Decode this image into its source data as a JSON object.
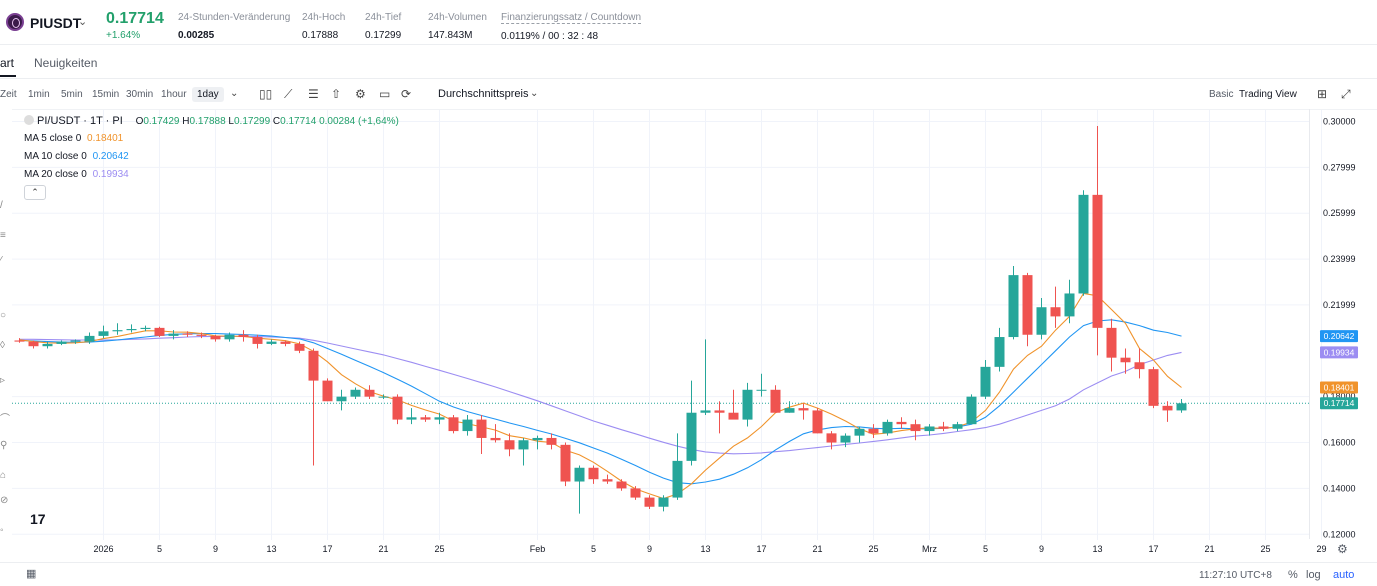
{
  "header": {
    "symbol": "PIUSDT",
    "last_price": "0.17714",
    "change_pct": "+1.64%",
    "stats": [
      {
        "label": "24-Stunden-Veränderung",
        "value": "0.00285"
      },
      {
        "label": "24h-Hoch",
        "value": "0.17888"
      },
      {
        "label": "24h-Tief",
        "value": "0.17299"
      },
      {
        "label": "24h-Volumen",
        "value": "147.843M"
      },
      {
        "label": "Finanzierungssatz / Countdown",
        "value": "0.0119% / 00 : 32 : 48"
      }
    ]
  },
  "tabs": {
    "chart": "art",
    "news": "Neuigkeiten"
  },
  "toolbar": {
    "intervals": [
      "Zeit",
      "1min",
      "5min",
      "15min",
      "30min",
      "1hour",
      "1day"
    ],
    "selected": "1day",
    "price_type": "Durchschnittspreis",
    "views": [
      "Basic",
      "Trading View"
    ]
  },
  "legend": {
    "title": "PI/USDT · 1T · PI",
    "ohlc": {
      "o": "0.17429",
      "h": "0.17888",
      "l": "0.17299",
      "c": "0.17714",
      "chg": "0.00284 (+1,64%)"
    },
    "ma": [
      {
        "label": "MA 5 close 0",
        "value": "0.18401",
        "color": "#f0932b"
      },
      {
        "label": "MA 10 close 0",
        "value": "0.20642",
        "color": "#2196f3"
      },
      {
        "label": "MA 20 close 0",
        "value": "0.19934",
        "color": "#9c8df2"
      }
    ]
  },
  "colors": {
    "up": "#26a69a",
    "down": "#ef5350",
    "ma5": "#f0932b",
    "ma10": "#2196f3",
    "ma20": "#9c8df2"
  },
  "bottom": {
    "time": "11:27:10 UTC+8",
    "pct": "%",
    "log": "log",
    "auto": "auto"
  },
  "chart_data": {
    "type": "candlestick",
    "y_ticks": [
      "0.30000",
      "0.27999",
      "0.25999",
      "0.23999",
      "0.21999",
      "0.18000",
      "0.16000",
      "0.14000",
      "0.12000"
    ],
    "y_tick_values": [
      0.3,
      0.28,
      0.26,
      0.24,
      0.22,
      0.18,
      0.16,
      0.14,
      0.12
    ],
    "ylim": [
      0.1175,
      0.305
    ],
    "x_labels": [
      {
        "d": 6,
        "t": "2026"
      },
      {
        "d": 10,
        "t": "5"
      },
      {
        "d": 14,
        "t": "9"
      },
      {
        "d": 18,
        "t": "13"
      },
      {
        "d": 22,
        "t": "17"
      },
      {
        "d": 26,
        "t": "21"
      },
      {
        "d": 30,
        "t": "25"
      },
      {
        "d": 37,
        "t": "Feb"
      },
      {
        "d": 41,
        "t": "5"
      },
      {
        "d": 45,
        "t": "9"
      },
      {
        "d": 49,
        "t": "13"
      },
      {
        "d": 53,
        "t": "17"
      },
      {
        "d": 57,
        "t": "21"
      },
      {
        "d": 61,
        "t": "25"
      },
      {
        "d": 65,
        "t": "Mrz"
      },
      {
        "d": 69,
        "t": "5"
      },
      {
        "d": 73,
        "t": "9"
      },
      {
        "d": 77,
        "t": "13"
      },
      {
        "d": 81,
        "t": "17"
      },
      {
        "d": 85,
        "t": "21"
      },
      {
        "d": 89,
        "t": "25"
      },
      {
        "d": 93,
        "t": "29"
      }
    ],
    "price_labels": [
      {
        "t": "0.20642",
        "v": 0.20642,
        "bg": "#2196f3"
      },
      {
        "t": "0.19934",
        "v": 0.19934,
        "bg": "#9c8df2"
      },
      {
        "t": "0.18401",
        "v": 0.18401,
        "bg": "#f0932b"
      },
      {
        "t": "0.17714",
        "v": 0.17714,
        "bg": "#26a69a"
      }
    ],
    "last_price": 0.17714,
    "candles": [
      [
        0.2045,
        0.2055,
        0.2035,
        0.204
      ],
      [
        0.204,
        0.2045,
        0.201,
        0.202
      ],
      [
        0.202,
        0.204,
        0.201,
        0.203
      ],
      [
        0.203,
        0.2045,
        0.2025,
        0.204
      ],
      [
        0.204,
        0.205,
        0.203,
        0.2045
      ],
      [
        0.204,
        0.208,
        0.203,
        0.2065
      ],
      [
        0.2065,
        0.211,
        0.2055,
        0.2085
      ],
      [
        0.2085,
        0.212,
        0.207,
        0.209
      ],
      [
        0.209,
        0.2115,
        0.208,
        0.2095
      ],
      [
        0.2095,
        0.211,
        0.2085,
        0.21
      ],
      [
        0.21,
        0.2105,
        0.206,
        0.2065
      ],
      [
        0.2065,
        0.209,
        0.205,
        0.2075
      ],
      [
        0.2075,
        0.2085,
        0.206,
        0.207
      ],
      [
        0.207,
        0.208,
        0.2055,
        0.2065
      ],
      [
        0.2065,
        0.207,
        0.204,
        0.205
      ],
      [
        0.205,
        0.208,
        0.204,
        0.207
      ],
      [
        0.207,
        0.209,
        0.204,
        0.206
      ],
      [
        0.206,
        0.207,
        0.201,
        0.203
      ],
      [
        0.203,
        0.205,
        0.2025,
        0.204
      ],
      [
        0.204,
        0.2045,
        0.202,
        0.203
      ],
      [
        0.203,
        0.204,
        0.199,
        0.2
      ],
      [
        0.2,
        0.201,
        0.15,
        0.187
      ],
      [
        0.187,
        0.188,
        0.178,
        0.178
      ],
      [
        0.178,
        0.183,
        0.174,
        0.18
      ],
      [
        0.18,
        0.184,
        0.179,
        0.183
      ],
      [
        0.183,
        0.185,
        0.179,
        0.18
      ],
      [
        0.18,
        0.181,
        0.179,
        0.18
      ],
      [
        0.18,
        0.181,
        0.168,
        0.17
      ],
      [
        0.17,
        0.175,
        0.168,
        0.171
      ],
      [
        0.171,
        0.172,
        0.169,
        0.17
      ],
      [
        0.17,
        0.173,
        0.168,
        0.171
      ],
      [
        0.171,
        0.172,
        0.164,
        0.165
      ],
      [
        0.165,
        0.172,
        0.163,
        0.17
      ],
      [
        0.17,
        0.172,
        0.155,
        0.162
      ],
      [
        0.162,
        0.168,
        0.16,
        0.161
      ],
      [
        0.161,
        0.164,
        0.154,
        0.157
      ],
      [
        0.157,
        0.162,
        0.15,
        0.161
      ],
      [
        0.161,
        0.163,
        0.157,
        0.162
      ],
      [
        0.162,
        0.164,
        0.157,
        0.159
      ],
      [
        0.159,
        0.16,
        0.141,
        0.143
      ],
      [
        0.143,
        0.15,
        0.129,
        0.149
      ],
      [
        0.149,
        0.15,
        0.142,
        0.144
      ],
      [
        0.144,
        0.146,
        0.142,
        0.143
      ],
      [
        0.143,
        0.144,
        0.139,
        0.14
      ],
      [
        0.14,
        0.141,
        0.135,
        0.136
      ],
      [
        0.136,
        0.137,
        0.131,
        0.132
      ],
      [
        0.132,
        0.137,
        0.13,
        0.136
      ],
      [
        0.136,
        0.164,
        0.135,
        0.152
      ],
      [
        0.152,
        0.187,
        0.15,
        0.173
      ],
      [
        0.173,
        0.205,
        0.172,
        0.174
      ],
      [
        0.174,
        0.178,
        0.164,
        0.173
      ],
      [
        0.173,
        0.183,
        0.171,
        0.17
      ],
      [
        0.17,
        0.186,
        0.167,
        0.183
      ],
      [
        0.183,
        0.19,
        0.18,
        0.183
      ],
      [
        0.183,
        0.185,
        0.173,
        0.173
      ],
      [
        0.173,
        0.178,
        0.173,
        0.175
      ],
      [
        0.175,
        0.177,
        0.17,
        0.174
      ],
      [
        0.174,
        0.175,
        0.164,
        0.164
      ],
      [
        0.164,
        0.165,
        0.157,
        0.16
      ],
      [
        0.16,
        0.164,
        0.158,
        0.163
      ],
      [
        0.163,
        0.167,
        0.16,
        0.166
      ],
      [
        0.166,
        0.168,
        0.162,
        0.164
      ],
      [
        0.164,
        0.17,
        0.163,
        0.169
      ],
      [
        0.169,
        0.171,
        0.166,
        0.168
      ],
      [
        0.168,
        0.17,
        0.161,
        0.165
      ],
      [
        0.165,
        0.168,
        0.163,
        0.167
      ],
      [
        0.167,
        0.169,
        0.165,
        0.166
      ],
      [
        0.166,
        0.169,
        0.165,
        0.168
      ],
      [
        0.168,
        0.181,
        0.168,
        0.18
      ],
      [
        0.18,
        0.196,
        0.179,
        0.193
      ],
      [
        0.193,
        0.21,
        0.191,
        0.206
      ],
      [
        0.206,
        0.237,
        0.205,
        0.233
      ],
      [
        0.233,
        0.234,
        0.202,
        0.207
      ],
      [
        0.207,
        0.223,
        0.205,
        0.219
      ],
      [
        0.219,
        0.228,
        0.21,
        0.215
      ],
      [
        0.215,
        0.231,
        0.212,
        0.225
      ],
      [
        0.225,
        0.27,
        0.224,
        0.268
      ],
      [
        0.268,
        0.298,
        0.198,
        0.21
      ],
      [
        0.21,
        0.214,
        0.191,
        0.197
      ],
      [
        0.197,
        0.201,
        0.19,
        0.195
      ],
      [
        0.195,
        0.201,
        0.188,
        0.192
      ],
      [
        0.192,
        0.193,
        0.175,
        0.176
      ],
      [
        0.176,
        0.178,
        0.169,
        0.174
      ],
      [
        0.174,
        0.179,
        0.173,
        0.1771
      ]
    ],
    "ma5": [
      0.2048,
      0.204,
      0.2035,
      0.2033,
      0.2035,
      0.204,
      0.2053,
      0.2063,
      0.2075,
      0.2087,
      0.2087,
      0.2082,
      0.2081,
      0.2075,
      0.2065,
      0.2064,
      0.2063,
      0.2055,
      0.205,
      0.2044,
      0.203,
      0.1998,
      0.1952,
      0.1896,
      0.1856,
      0.1822,
      0.1802,
      0.1786,
      0.1762,
      0.1742,
      0.1724,
      0.1694,
      0.1682,
      0.1668,
      0.1654,
      0.163,
      0.162,
      0.1606,
      0.16,
      0.1566,
      0.1546,
      0.1514,
      0.1474,
      0.1432,
      0.1398,
      0.1376,
      0.1356,
      0.1376,
      0.142,
      0.148,
      0.1532,
      0.1584,
      0.162,
      0.167,
      0.173,
      0.1754,
      0.1772,
      0.175,
      0.1724,
      0.1694,
      0.166,
      0.1636,
      0.1642,
      0.1652,
      0.166,
      0.1664,
      0.1662,
      0.1668,
      0.169,
      0.174,
      0.182,
      0.192,
      0.198,
      0.202,
      0.209,
      0.215,
      0.225,
      0.224,
      0.218,
      0.212,
      0.201,
      0.196,
      0.1889,
      0.184
    ],
    "ma10": [
      0.2045,
      0.2043,
      0.204,
      0.2038,
      0.2037,
      0.2038,
      0.2042,
      0.2047,
      0.2054,
      0.206,
      0.2067,
      0.2072,
      0.2074,
      0.2075,
      0.2075,
      0.2073,
      0.2071,
      0.2068,
      0.2064,
      0.2058,
      0.2052,
      0.2035,
      0.201,
      0.1985,
      0.1958,
      0.1932,
      0.1905,
      0.1876,
      0.1846,
      0.1813,
      0.178,
      0.1755,
      0.1735,
      0.1718,
      0.1702,
      0.1685,
      0.167,
      0.1653,
      0.1637,
      0.1618,
      0.1599,
      0.1576,
      0.1554,
      0.1527,
      0.15,
      0.147,
      0.1445,
      0.1425,
      0.142,
      0.1428,
      0.144,
      0.1462,
      0.149,
      0.1525,
      0.1568,
      0.1605,
      0.1638,
      0.1655,
      0.1665,
      0.167,
      0.1668,
      0.1662,
      0.166,
      0.1662,
      0.166,
      0.166,
      0.1662,
      0.1668,
      0.168,
      0.171,
      0.176,
      0.182,
      0.188,
      0.194,
      0.2,
      0.206,
      0.211,
      0.213,
      0.2135,
      0.2125,
      0.211,
      0.209,
      0.208,
      0.2064
    ],
    "ma20": [
      0.205,
      0.205,
      0.2049,
      0.2048,
      0.2047,
      0.2047,
      0.2047,
      0.2048,
      0.205,
      0.2052,
      0.2055,
      0.2057,
      0.206,
      0.2062,
      0.2063,
      0.2063,
      0.2063,
      0.2062,
      0.206,
      0.2058,
      0.2055,
      0.2046,
      0.2034,
      0.2021,
      0.2008,
      0.1995,
      0.1982,
      0.1966,
      0.195,
      0.1932,
      0.1915,
      0.1897,
      0.1879,
      0.1861,
      0.1842,
      0.1822,
      0.1802,
      0.1782,
      0.176,
      0.1738,
      0.1716,
      0.1694,
      0.1675,
      0.1656,
      0.1638,
      0.1619,
      0.1601,
      0.1584,
      0.157,
      0.1559,
      0.1554,
      0.1551,
      0.1552,
      0.1555,
      0.156,
      0.1565,
      0.1572,
      0.1578,
      0.1585,
      0.1592,
      0.1598,
      0.1605,
      0.1612,
      0.162,
      0.1628,
      0.1633,
      0.164,
      0.1648,
      0.1656,
      0.1665,
      0.168,
      0.17,
      0.172,
      0.174,
      0.176,
      0.179,
      0.183,
      0.186,
      0.189,
      0.191,
      0.194,
      0.196,
      0.198,
      0.1993
    ]
  }
}
